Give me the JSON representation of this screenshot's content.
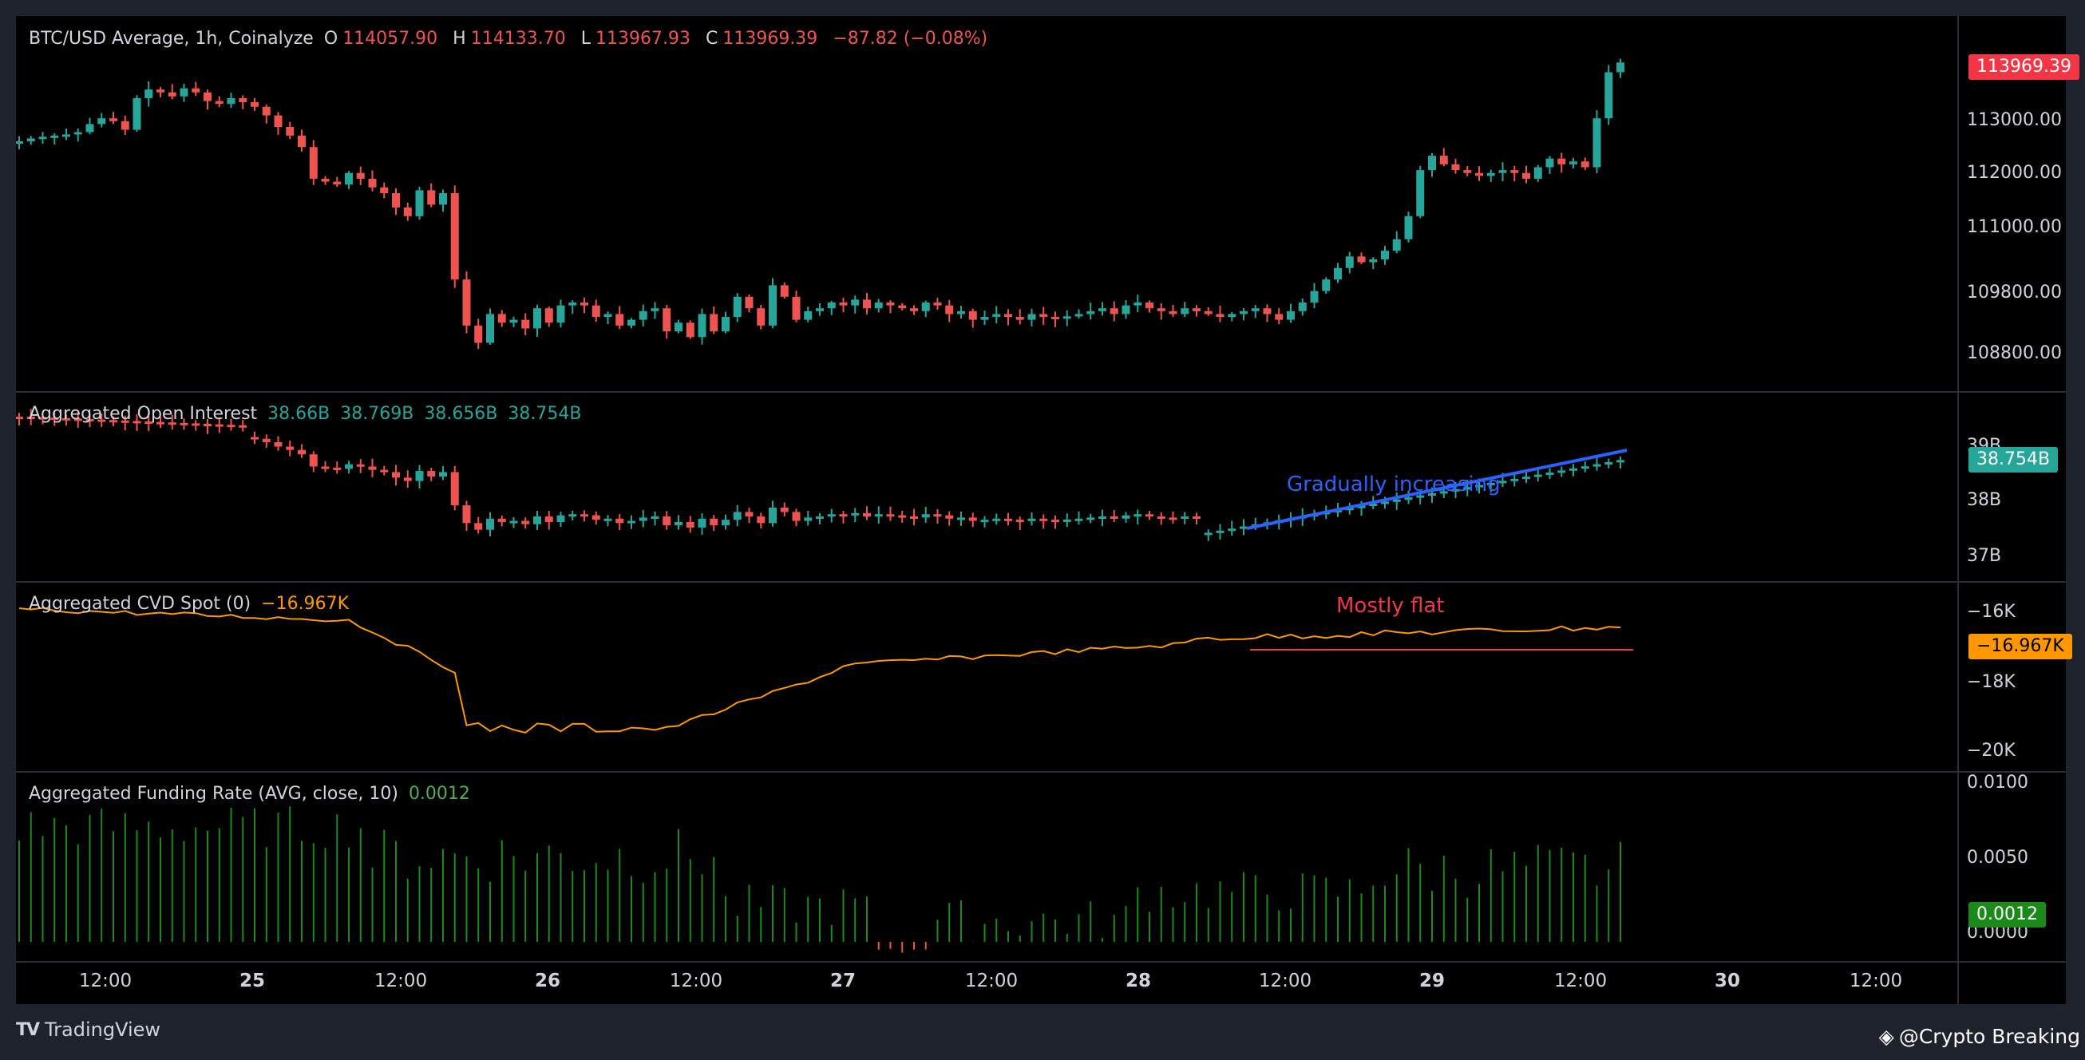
{
  "price_panel": {
    "symbol": "BTC/USD Average, 1h, Coinalyze",
    "o_label": "O",
    "o_value": "114057.90",
    "h_label": "H",
    "h_value": "114133.70",
    "l_label": "L",
    "l_value": "113967.93",
    "c_label": "C",
    "c_value": "113969.39",
    "change": "−87.82 (−0.08%)",
    "axis_ticks": [
      "113000.00",
      "112000.00",
      "111000.00",
      "109800.00",
      "108800.00"
    ],
    "last_price_tag": "113969.39"
  },
  "oi_panel": {
    "name": "Aggregated Open Interest",
    "values": [
      "38.66B",
      "38.769B",
      "38.656B",
      "38.754B"
    ],
    "axis_ticks": [
      "39B",
      "38B",
      "37B"
    ],
    "last_tag": "38.754B",
    "annotation": "Gradually increasing"
  },
  "cvd_panel": {
    "name": "Aggregated CVD Spot (0)",
    "value": "−16.967K",
    "axis_ticks": [
      "−16K",
      "−18K",
      "−20K"
    ],
    "last_tag": "−16.967K",
    "annotation": "Mostly flat"
  },
  "funding_panel": {
    "name": "Aggregated Funding Rate (AVG, close, 10)",
    "value": "0.0012",
    "axis_ticks": [
      "0.0100",
      "0.0050",
      "0.0000"
    ],
    "last_tag": "0.0012"
  },
  "time_axis": [
    "12:00",
    "25",
    "12:00",
    "26",
    "12:00",
    "27",
    "12:00",
    "28",
    "12:00",
    "29",
    "12:00",
    "30",
    "12:00"
  ],
  "branding": {
    "tradingview": "TradingView",
    "source": "@Crypto Breaking"
  },
  "colors": {
    "up": "#26a69a",
    "down": "#ef5350",
    "cvd": "#ff9800",
    "funding": "#1b8a1b",
    "trend_blue": "#2962ff",
    "flat_red": "#f23645"
  },
  "chart_data": [
    {
      "type": "candlestick",
      "title": "BTC/USD Average, 1h, Coinalyze",
      "ylim": [
        108400,
        114500
      ],
      "ohlc_closes": [
        112600,
        112650,
        112680,
        112700,
        112720,
        112760,
        112900,
        113000,
        112950,
        112800,
        113350,
        113500,
        113450,
        113380,
        113520,
        113450,
        113300,
        113250,
        113350,
        113280,
        113200,
        113050,
        112850,
        112700,
        112500,
        111950,
        111900,
        111850,
        112050,
        111950,
        111800,
        111700,
        111450,
        111300,
        111750,
        111500,
        111700,
        110200,
        109400,
        109100,
        109600,
        109450,
        109500,
        109350,
        109700,
        109450,
        109750,
        109800,
        109750,
        109550,
        109600,
        109400,
        109500,
        109650,
        109700,
        109300,
        109450,
        109200,
        109600,
        109300,
        109550,
        109900,
        109700,
        109400,
        110100,
        109900,
        109500,
        109650,
        109700,
        109800,
        109750,
        109850,
        109700,
        109800,
        109750,
        109700,
        109650,
        109800,
        109750,
        109600,
        109650,
        109500,
        109550,
        109600,
        109550,
        109500,
        109600,
        109550,
        109520,
        109560,
        109600,
        109650,
        109700,
        109600,
        109750,
        109800,
        109700,
        109650,
        109600,
        109700,
        109650,
        109600,
        109550,
        109600,
        109650,
        109700,
        109600,
        109500,
        109650,
        109800,
        110000,
        110200,
        110400,
        110600,
        110500,
        110550,
        110700,
        110900,
        111300,
        112100,
        112350,
        112200,
        112100,
        112050,
        112000,
        112050,
        112100,
        112050,
        111950,
        112150,
        112300,
        112200,
        112250,
        112150,
        113000,
        113800,
        113969
      ]
    },
    {
      "type": "candlestick",
      "title": "Aggregated Open Interest",
      "ylim": [
        36.8,
        39.2
      ],
      "values_billions": [
        38.66,
        38.769,
        38.656,
        38.754
      ]
    },
    {
      "type": "line",
      "title": "Aggregated CVD Spot (0)",
      "ylim": [
        -20200,
        -15800
      ],
      "last_value": -16967
    },
    {
      "type": "bar",
      "title": "Aggregated Funding Rate (AVG, close, 10)",
      "ylim": [
        -0.0005,
        0.0105
      ],
      "last_value": 0.0012
    }
  ]
}
